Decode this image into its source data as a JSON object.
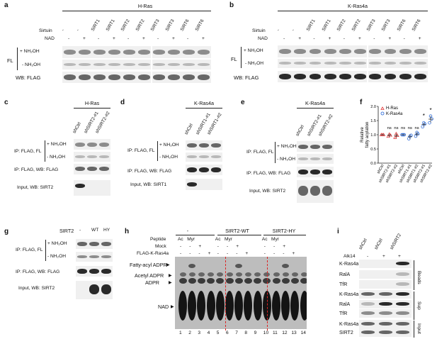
{
  "panels": {
    "a": {
      "letter": "a",
      "title": "H-Ras",
      "sirtuin_label": "Sirtuin",
      "nad_label": "NAD",
      "sirtuin_values": [
        "-",
        "-",
        "SIRT1",
        "SIRT1",
        "SIRT2",
        "SIRT2",
        "SIRT3",
        "SIRT3",
        "SIRT6",
        "SIRT6"
      ],
      "nad_values": [
        "-",
        "+",
        "-",
        "+",
        "-",
        "+",
        "-",
        "+",
        "-",
        "+"
      ],
      "fl": "FL",
      "nh2oh_plus": "+ NH₂OH",
      "nh2oh_minus": "- NH₂OH",
      "wb": "WB: FLAG"
    },
    "b": {
      "letter": "b",
      "title": "K-Ras4a",
      "sirtuin_label": "Sirtuin",
      "nad_label": "NAD",
      "sirtuin_values": [
        "-",
        "-",
        "SIRT1",
        "SIRT1",
        "SIRT2",
        "SIRT2",
        "SIRT3",
        "SIRT3",
        "SIRT6",
        "SIRT6"
      ],
      "nad_values": [
        "-",
        "+",
        "-",
        "+",
        "-",
        "+",
        "-",
        "+",
        "-",
        "+"
      ],
      "fl": "FL",
      "nh2oh_plus": "+ NH₂OH",
      "nh2oh_minus": "- NH₂OH",
      "wb": "WB: FLAG"
    },
    "c": {
      "letter": "c",
      "title": "H-Ras",
      "lanes": [
        "shCtrl",
        "shSIRT2-#1",
        "shSIRT2-#2"
      ],
      "ip_fl": "IP: FLAG, FL",
      "nh2oh_plus": "+ NH₂OH",
      "nh2oh_minus": "- NH₂OH",
      "ip_wb": "IP: FLAG, WB: FLAG",
      "input": "Input, WB: SIRT2"
    },
    "d": {
      "letter": "d",
      "title": "K-Ras4a",
      "lanes": [
        "shCtrl",
        "shSIRT1-#1",
        "shSIRT1-#2"
      ],
      "ip_fl": "IP: FLAG, FL",
      "nh2oh_plus": "+ NH₂OH",
      "nh2oh_minus": "- NH₂OH",
      "ip_wb": "IP: FLAG, WB: FLAG",
      "input": "Input, WB: SIRT1"
    },
    "e": {
      "letter": "e",
      "title": "K-Ras4a",
      "lanes": [
        "shCtrl",
        "shSIRT2-#1",
        "shSIRT2-#2"
      ],
      "ip_fl": "IP: FLAG, FL",
      "nh2oh_plus": "+ NH₂OH",
      "nh2oh_minus": "- NH₂OH",
      "ip_wb": "IP: FLAG, WB: FLAG",
      "input": "Input, WB: SIRT2"
    },
    "g": {
      "letter": "g",
      "sirt2_label": "SIRT2",
      "lanes": [
        "-",
        "WT",
        "HY"
      ],
      "ip_fl": "IP: FLAG, FL",
      "nh2oh_plus": "+ NH₂OH",
      "nh2oh_minus": "- NH₂OH",
      "ip_wb": "IP: FLAG, WB: FLAG",
      "input": "Input, WB: SIRT2"
    },
    "h": {
      "letter": "h",
      "groups": [
        "-",
        "SIRT2-WT",
        "SIRT2-HY"
      ],
      "peptide_label": "Peptide",
      "mock_label": "Mock",
      "flag_label": "FLAG-K-Ras4a",
      "peptide_vals": [
        "Ac",
        "Myr",
        "Ac",
        "Myr",
        "Ac",
        "Myr"
      ],
      "mock_vals": [
        "-",
        "-",
        "+",
        "-",
        "-",
        "+",
        "-",
        "-",
        "+"
      ],
      "flag_vals": [
        "-",
        "-",
        "-",
        "+",
        "-",
        "-",
        "-",
        "+",
        "-",
        "-",
        "-",
        "+"
      ],
      "markers": [
        "Fatty-acyl ADPR",
        "Acetyl ADPR",
        "ADPR",
        "NAD"
      ],
      "lane_numbers": [
        "1",
        "2",
        "3",
        "4",
        "5",
        "6",
        "7",
        "8",
        "9",
        "10",
        "11",
        "12",
        "13",
        "14"
      ]
    },
    "i": {
      "letter": "i",
      "alk14_label": "Alk14",
      "lanes": [
        "shCtrl",
        "shCtrl",
        "shSIRT2"
      ],
      "alk14_vals": [
        "-",
        "+",
        "+"
      ],
      "rows": [
        "K-Ras4a",
        "RalA",
        "TfR",
        "K-Ras4a",
        "RalA",
        "TfR",
        "K-Ras4a",
        "SIRT2"
      ],
      "sections": [
        "Beads",
        "Sup",
        "Input"
      ]
    }
  },
  "chart_data": {
    "type": "scatter",
    "letter": "f",
    "ylabel": "Relative fatty acylation",
    "categories": [
      "shCtrl",
      "shSIRT2-#1",
      "shSIRT2-#2",
      "shCtrl",
      "shSIRT1-#1",
      "shSIRT1-#2",
      "shSIRT2-#1",
      "shSIRT2-#2"
    ],
    "series": [
      {
        "name": "H-Ras",
        "color": "#e03131",
        "marker": "triangle",
        "indices": [
          0,
          1,
          2
        ],
        "means": [
          1.0,
          0.98,
          0.97
        ],
        "errors": [
          0.02,
          0.06,
          0.08
        ],
        "points": [
          [
            1.0,
            1.0,
            1.0
          ],
          [
            0.94,
            1.02,
            0.98
          ],
          [
            0.9,
            1.04,
            0.97
          ]
        ]
      },
      {
        "name": "K-Ras4a",
        "color": "#1c5fd6",
        "marker": "circle",
        "indices": [
          3,
          4,
          5,
          6,
          7
        ],
        "means": [
          1.0,
          0.93,
          1.02,
          1.36,
          1.55
        ],
        "errors": [
          0.02,
          0.08,
          0.08,
          0.07,
          0.12
        ],
        "points": [
          [
            1.0,
            1.0,
            1.0
          ],
          [
            0.86,
            0.95,
            0.98
          ],
          [
            0.95,
            1.08,
            1.03
          ],
          [
            1.28,
            1.42,
            1.38
          ],
          [
            1.42,
            1.66,
            1.56
          ]
        ]
      }
    ],
    "annotations": [
      "ns",
      "ns",
      "ns",
      "ns",
      "ns",
      "*",
      "*"
    ],
    "ylim": [
      0.0,
      2.0
    ],
    "yticks": [
      "0.0",
      "0.5",
      "1.0",
      "1.5",
      "2.0"
    ],
    "legend_position": "top-left"
  }
}
